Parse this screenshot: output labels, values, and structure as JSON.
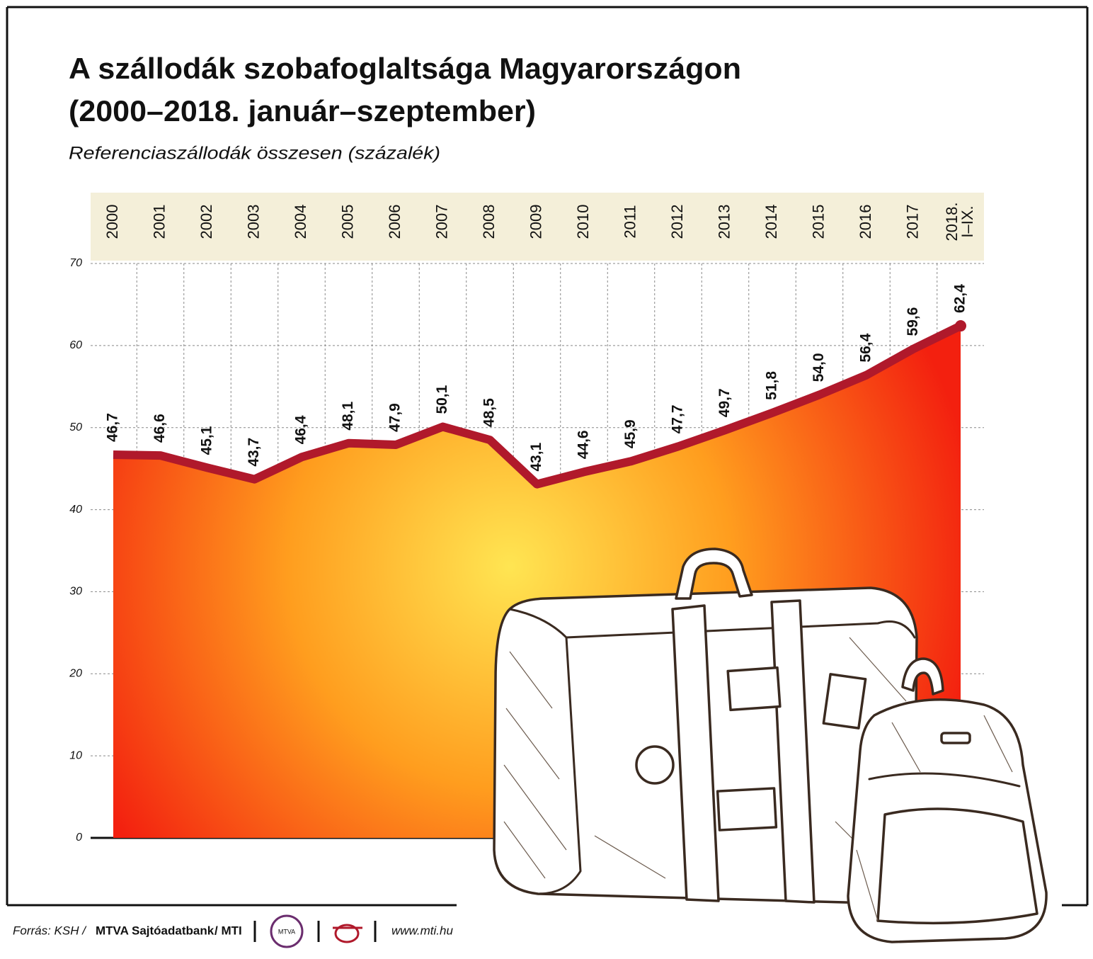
{
  "chart_data": {
    "type": "area-line",
    "title": [
      "A szállodák szobafoglaltsága Magyarországon",
      "(2000–2018. január–szeptember)"
    ],
    "subtitle": "Referenciaszállodák összesen (százalék)",
    "categories": [
      "2000",
      "2001",
      "2002",
      "2003",
      "2004",
      "2005",
      "2006",
      "2007",
      "2008",
      "2009",
      "2010",
      "2011",
      "2012",
      "2013",
      "2014",
      "2015",
      "2016",
      "2017",
      "2018. I–IX."
    ],
    "values": [
      46.7,
      46.6,
      45.1,
      43.7,
      46.4,
      48.1,
      47.9,
      50.1,
      48.5,
      43.1,
      44.6,
      45.9,
      47.7,
      49.7,
      51.8,
      54,
      56.4,
      59.6,
      62.4
    ],
    "value_labels": [
      "46,7",
      "46,6",
      "45,1",
      "43,7",
      "46,4",
      "48,1",
      "47,9",
      "50,1",
      "48,5",
      "43,1",
      "44,6",
      "45,9",
      "47,7",
      "49,7",
      "51,8",
      "54,0",
      "56,4",
      "59,6",
      "62,4"
    ],
    "color": "#b0192b",
    "area_colors": [
      "#ffe552",
      "#ff9d1e",
      "#f3200f"
    ],
    "ylim": [
      0,
      70
    ],
    "yticks": [
      0,
      10,
      20,
      30,
      40,
      50,
      60,
      70
    ],
    "grid": true
  },
  "footer": {
    "source": "Forrás: KSH /",
    "bank": "MTVA Sajtóadatbank",
    "mti": "/ MTI",
    "logo": "MTVA",
    "url": "www.mti.hu"
  }
}
